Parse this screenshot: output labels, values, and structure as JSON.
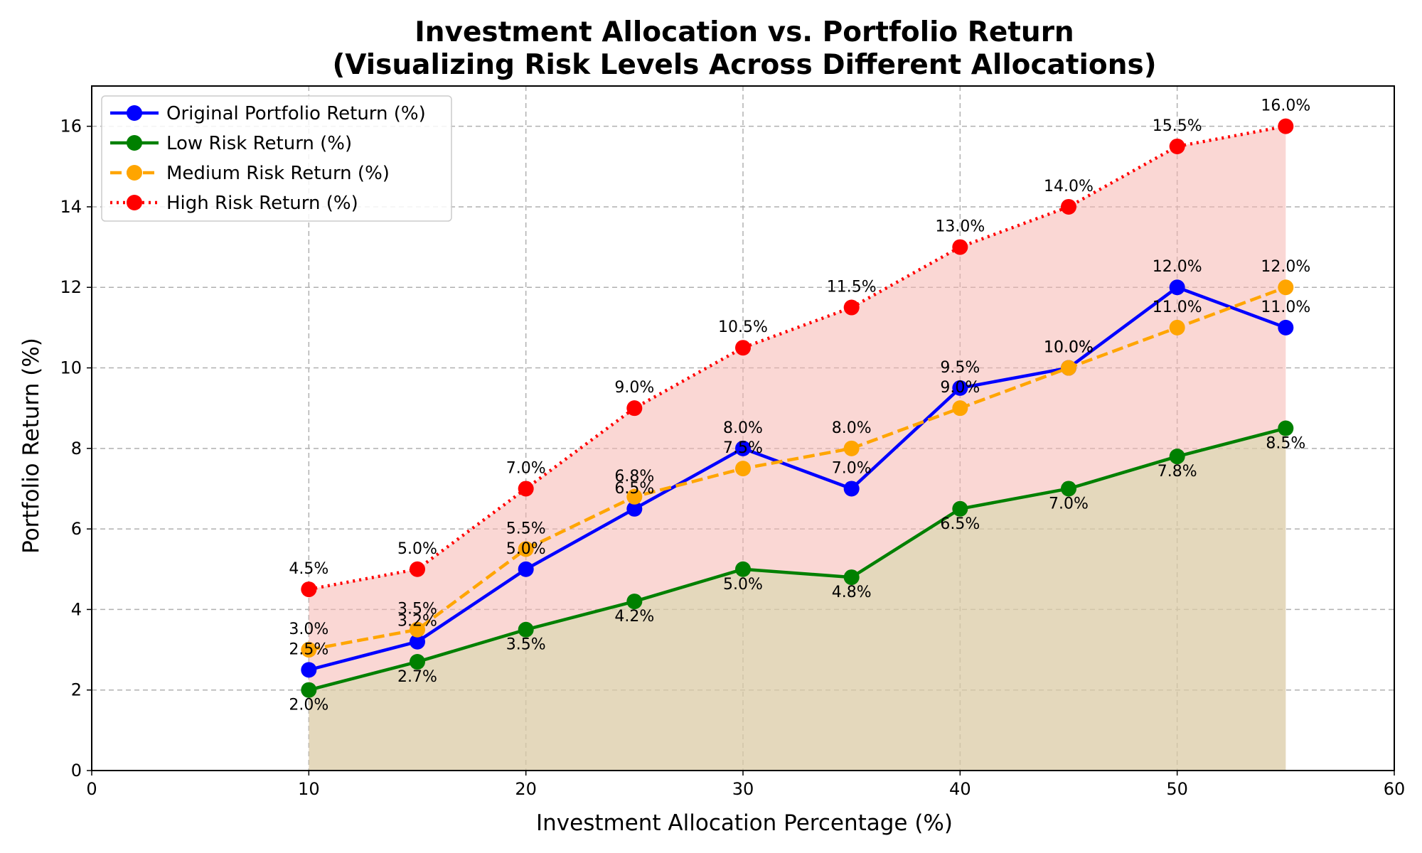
{
  "chart_data": {
    "type": "line",
    "title_line1": "Investment Allocation vs. Portfolio Return",
    "title_line2": "(Visualizing Risk Levels Across Different Allocations)",
    "xlabel": "Investment Allocation Percentage (%)",
    "ylabel": "Portfolio Return (%)",
    "xlim": [
      0,
      60
    ],
    "ylim": [
      0,
      17
    ],
    "xticks": [
      0,
      10,
      20,
      30,
      40,
      50,
      60
    ],
    "yticks": [
      0,
      2,
      4,
      6,
      8,
      10,
      12,
      14,
      16
    ],
    "grid": true,
    "legend_position": "top-left",
    "x": [
      10,
      15,
      20,
      25,
      30,
      35,
      40,
      45,
      50,
      55
    ],
    "series": [
      {
        "name": "Original Portfolio Return (%)",
        "values": [
          2.5,
          3.2,
          5.0,
          6.5,
          8.0,
          7.0,
          9.5,
          10.0,
          12.0,
          11.0
        ],
        "labels": [
          "2.5%",
          "3.2%",
          "5.0%",
          "6.5%",
          "8.0%",
          "7.0%",
          "9.5%",
          "10.0%",
          "12.0%",
          "11.0%"
        ],
        "color": "#0000ff",
        "line_style": "solid",
        "label_position": "above"
      },
      {
        "name": "Low Risk Return (%)",
        "values": [
          2.0,
          2.7,
          3.5,
          4.2,
          5.0,
          4.8,
          6.5,
          7.0,
          7.8,
          8.5
        ],
        "labels": [
          "2.0%",
          "2.7%",
          "3.5%",
          "4.2%",
          "5.0%",
          "4.8%",
          "6.5%",
          "7.0%",
          "7.8%",
          "8.5%"
        ],
        "color": "#008000",
        "line_style": "solid",
        "label_position": "below"
      },
      {
        "name": "Medium Risk Return (%)",
        "values": [
          3.0,
          3.5,
          5.5,
          6.8,
          7.5,
          8.0,
          9.0,
          10.0,
          11.0,
          12.0
        ],
        "labels": [
          "3.0%",
          "3.5%",
          "5.5%",
          "6.8%",
          "7.5%",
          "8.0%",
          "9.0%",
          "10.0%",
          "11.0%",
          "12.0%"
        ],
        "color": "#ffa500",
        "line_style": "dashed",
        "label_position": "above"
      },
      {
        "name": "High Risk Return (%)",
        "values": [
          4.5,
          5.0,
          7.0,
          9.0,
          10.5,
          11.5,
          13.0,
          14.0,
          15.5,
          16.0
        ],
        "labels": [
          "4.5%",
          "5.0%",
          "7.0%",
          "9.0%",
          "10.5%",
          "11.5%",
          "13.0%",
          "14.0%",
          "15.5%",
          "16.0%"
        ],
        "color": "#ff0000",
        "line_style": "dotted",
        "label_position": "above"
      }
    ],
    "fills": [
      {
        "series_index": 3,
        "color": "#f5b7b1",
        "opacity": 0.55
      },
      {
        "series_index": 1,
        "color": "#c9d9a0",
        "opacity": 0.45
      }
    ]
  }
}
